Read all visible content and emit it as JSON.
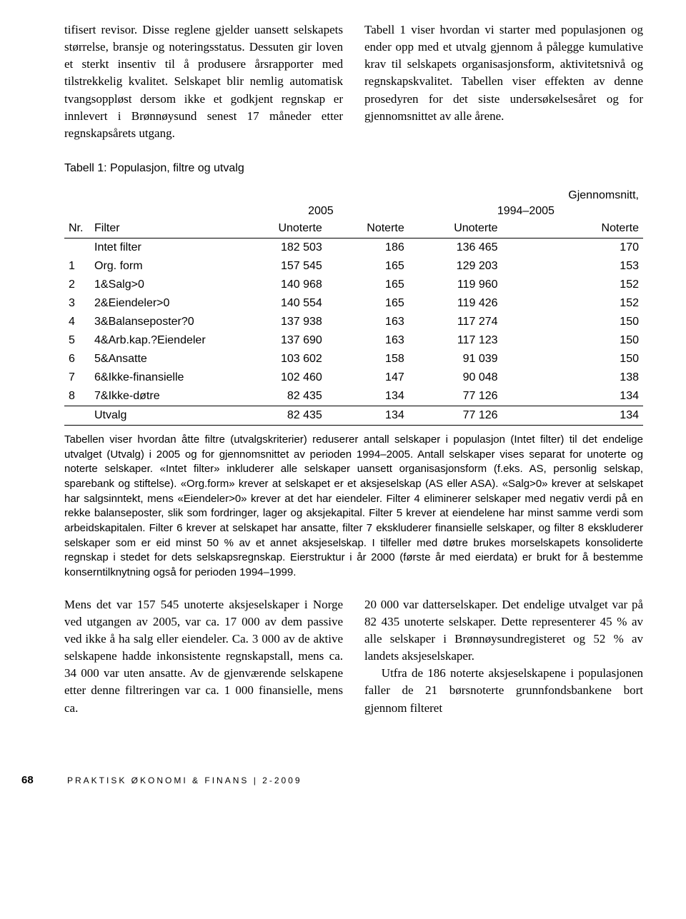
{
  "intro": {
    "left": "tifisert revisor. Disse reglene gjelder uansett selskapets størrelse, bransje og noteringsstatus. Dessuten gir loven et sterkt insentiv til å produsere årsrapporter med tilstrekkelig kvalitet. Selskapet blir nemlig automatisk tvangsoppløst dersom ikke et godkjent regnskap er innlevert i Brønnøysund senest 17 måneder etter regnskapsårets utgang.",
    "right": "Tabell 1 viser hvordan vi starter med populasjonen og ender opp med et utvalg gjennom å pålegge kumulative krav til selskapets organisasjonsform, aktivitetsnivå og regnskapskvalitet. Tabellen viser effekten av denne prosedyren for det siste undersøkelsesåret og for gjennomsnittet av alle årene."
  },
  "table": {
    "title": "Tabell 1: Populasjon, filtre og utvalg",
    "group1": "2005",
    "group2_top": "Gjennomsnitt,",
    "group2_bot": "1994–2005",
    "headers": {
      "nr": "Nr.",
      "filter": "Filter",
      "unoterte": "Unoterte",
      "noterte": "Noterte"
    },
    "rows": [
      {
        "nr": "",
        "filter": "Intet filter",
        "u1": "182 503",
        "n1": "186",
        "u2": "136 465",
        "n2": "170"
      },
      {
        "nr": "1",
        "filter": "Org. form",
        "u1": "157 545",
        "n1": "165",
        "u2": "129 203",
        "n2": "153"
      },
      {
        "nr": "2",
        "filter": "1&Salg>0",
        "u1": "140 968",
        "n1": "165",
        "u2": "119 960",
        "n2": "152"
      },
      {
        "nr": "3",
        "filter": "2&Eiendeler>0",
        "u1": "140 554",
        "n1": "165",
        "u2": "119 426",
        "n2": "152"
      },
      {
        "nr": "4",
        "filter": "3&Balanseposter?0",
        "u1": "137 938",
        "n1": "163",
        "u2": "117 274",
        "n2": "150"
      },
      {
        "nr": "5",
        "filter": "4&Arb.kap.?Eiendeler",
        "u1": "137 690",
        "n1": "163",
        "u2": "117 123",
        "n2": "150"
      },
      {
        "nr": "6",
        "filter": "5&Ansatte",
        "u1": "103 602",
        "n1": "158",
        "u2": "91 039",
        "n2": "150"
      },
      {
        "nr": "7",
        "filter": "6&Ikke-finansielle",
        "u1": "102 460",
        "n1": "147",
        "u2": "90 048",
        "n2": "138"
      },
      {
        "nr": "8",
        "filter": "7&Ikke-døtre",
        "u1": "82 435",
        "n1": "134",
        "u2": "77 126",
        "n2": "134"
      }
    ],
    "utvalg": {
      "nr": "",
      "filter": "Utvalg",
      "u1": "82 435",
      "n1": "134",
      "u2": "77 126",
      "n2": "134"
    },
    "note": "Tabellen viser hvordan åtte filtre (utvalgskriterier) reduserer antall selskaper i populasjon (Intet filter) til det endelige utvalget (Utvalg) i 2005 og for gjennomsnittet av perioden 1994–2005. Antall selskaper vises separat for unoterte og noterte selskaper. «Intet filter» inkluderer alle selskaper uansett organisasjonsform (f.eks. AS, personlig selskap, sparebank og stiftelse). «Org.form» krever at selskapet er et aksjeselskap (AS eller ASA). «Salg>0» krever at selskapet har salgsinntekt, mens «Eiendeler>0» krever at det har eiendeler. Filter 4 eliminerer selskaper med negativ verdi på en rekke balanseposter, slik som fordringer, lager og aksjekapital. Filter 5 krever at eiendelene har minst samme verdi som arbeidskapitalen. Filter 6 krever at selskapet har ansatte, filter 7 ekskluderer finansielle selskaper, og filter 8 ekskluderer selskaper som er eid minst 50 % av et annet aksjeselskap. I tilfeller med døtre brukes morselskapets konsoliderte regnskap i stedet for dets selskapsregnskap. Eierstruktur i år 2000 (første år med eierdata) er brukt for å bestemme konserntilknytning også for perioden 1994–1999."
  },
  "bottom": {
    "left": "Mens det var 157 545 unoterte aksjeselskaper i Norge ved utgangen av 2005, var ca. 17 000 av dem passive ved ikke å ha salg eller eiendeler. Ca. 3 000 av de aktive selskapene hadde inkonsistente regnskapstall, mens ca. 34 000 var uten ansatte. Av de gjenværende selskapene etter denne filtreringen var ca. 1 000 finansielle, mens ca.",
    "right1": "20 000 var datterselskaper. Det endelige utvalget var på 82 435 unoterte selskaper. Dette representerer 45 % av alle selskaper i Brønnøysundregisteret og 52 % av landets aksjeselskaper.",
    "right2": "Utfra de 186 noterte aksjeselskapene i populasjonen faller de 21 børsnoterte grunnfondsbankene bort gjennom filteret"
  },
  "footer": {
    "page": "68",
    "text": "PRAKTISK ØKONOMI & FINANS | 2-2009"
  }
}
